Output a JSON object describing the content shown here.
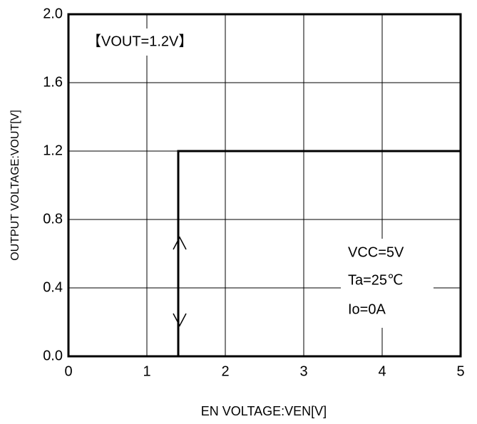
{
  "chart_data": {
    "type": "line",
    "x": [
      1.4,
      1.4,
      5
    ],
    "values": [
      0,
      1.2,
      1.2
    ],
    "color": "#000000",
    "xlabel": "EN VOLTAGE:VEN[V]",
    "ylabel": "OUTPUT VOLTAGE:VOUT[V]",
    "xlim": [
      0,
      5
    ],
    "xticks": [
      0,
      1,
      2,
      3,
      4,
      5
    ],
    "ylim": [
      0,
      2
    ],
    "yticks": [
      {
        "value": 0,
        "label": "0.0"
      },
      0.4,
      0.8,
      1.2,
      1.6,
      {
        "value": 2,
        "label": "2.0"
      }
    ],
    "grid": true,
    "annotations": [
      "【VOUT=1.2V】",
      "VCC=5V",
      "Ta=25℃",
      "Io=0A"
    ]
  }
}
